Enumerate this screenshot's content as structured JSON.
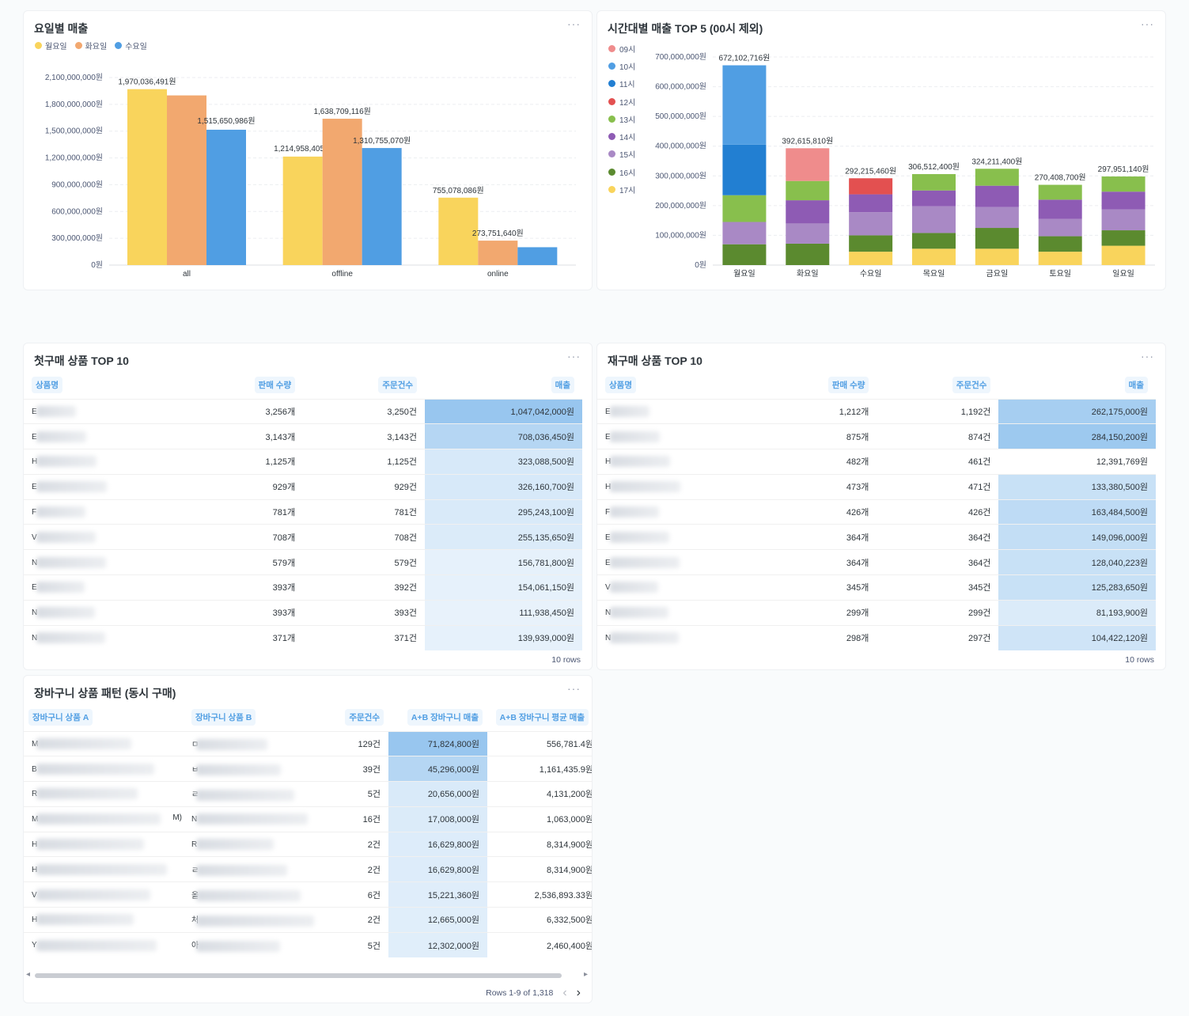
{
  "colors": {
    "mon": "#f9d45c",
    "tue": "#f2a86f",
    "wed": "#509ee3",
    "h09": "#ef8c8c",
    "h10": "#509ee3",
    "h11": "#227fd2",
    "h12": "#e35050",
    "h13": "#88bf4d",
    "h14": "#8e5bb4",
    "h15": "#a989c5",
    "h16": "#5b8a2f",
    "h17": "#f9d45c"
  },
  "card1": {
    "title": "요일별 매출",
    "more": "···",
    "legend": [
      "월요일",
      "화요일",
      "수요일"
    ]
  },
  "card2": {
    "title": "시간대별 매출 TOP 5 (00시 제외)",
    "more": "···",
    "legend": [
      "09시",
      "10시",
      "11시",
      "12시",
      "13시",
      "14시",
      "15시",
      "16시",
      "17시"
    ]
  },
  "chart_data": [
    {
      "type": "bar",
      "title": "요일별 매출",
      "categories": [
        "all",
        "offline",
        "online"
      ],
      "series": [
        {
          "name": "월요일",
          "values": [
            1970036491,
            1214958405,
            755078086
          ]
        },
        {
          "name": "화요일",
          "values": [
            1900000000,
            1638709116,
            273751640
          ]
        },
        {
          "name": "수요일",
          "values": [
            1515650986,
            1310755070,
            200000000
          ]
        }
      ],
      "data_labels": [
        [
          "1,970,036,491원",
          "",
          "1,515,650,986원"
        ],
        [
          "1,214,958,405원",
          "1,638,709,116원",
          "1,310,755,070원"
        ],
        [
          "755,078,086원",
          "273,751,640원",
          ""
        ]
      ],
      "yticks": [
        "0원",
        "300,000,000원",
        "600,000,000원",
        "900,000,000원",
        "1,200,000,000원",
        "1,500,000,000원",
        "1,800,000,000원",
        "2,100,000,000원"
      ],
      "ylim": [
        0,
        2100000000
      ]
    },
    {
      "type": "bar",
      "stacked": true,
      "title": "시간대별 매출 TOP 5 (00시 제외)",
      "categories": [
        "월요일",
        "화요일",
        "수요일",
        "목요일",
        "금요일",
        "토요일",
        "일요일"
      ],
      "totals": [
        "672,102,716원",
        "392,615,810원",
        "292,215,460원",
        "306,512,400원",
        "324,211,400원",
        "270,408,700원",
        "297,951,140원"
      ],
      "stacks": [
        [
          [
            "h16",
            70000000
          ],
          [
            "h15",
            75000000
          ],
          [
            "h13",
            90000000
          ],
          [
            "h11",
            170000000
          ],
          [
            "h10",
            267000000
          ]
        ],
        [
          [
            "h16",
            72000000
          ],
          [
            "h15",
            68000000
          ],
          [
            "h14",
            78000000
          ],
          [
            "h13",
            65000000
          ],
          [
            "h09",
            110000000
          ]
        ],
        [
          [
            "h17",
            45000000
          ],
          [
            "h16",
            55000000
          ],
          [
            "h15",
            78000000
          ],
          [
            "h14",
            60000000
          ],
          [
            "h12",
            54000000
          ]
        ],
        [
          [
            "h17",
            55000000
          ],
          [
            "h16",
            53000000
          ],
          [
            "h15",
            90000000
          ],
          [
            "h14",
            53000000
          ],
          [
            "h13",
            55000000
          ]
        ],
        [
          [
            "h17",
            55000000
          ],
          [
            "h16",
            70000000
          ],
          [
            "h15",
            70000000
          ],
          [
            "h14",
            72000000
          ],
          [
            "h13",
            57000000
          ]
        ],
        [
          [
            "h17",
            45000000
          ],
          [
            "h16",
            52000000
          ],
          [
            "h15",
            58000000
          ],
          [
            "h14",
            65000000
          ],
          [
            "h13",
            50000000
          ]
        ],
        [
          [
            "h17",
            65000000
          ],
          [
            "h16",
            52000000
          ],
          [
            "h15",
            70000000
          ],
          [
            "h14",
            60000000
          ],
          [
            "h13",
            51000000
          ]
        ]
      ],
      "yticks": [
        "0원",
        "100,000,000원",
        "200,000,000원",
        "300,000,000원",
        "400,000,000원",
        "500,000,000원",
        "600,000,000원",
        "700,000,000원"
      ],
      "ylim": [
        0,
        700000000
      ]
    }
  ],
  "first": {
    "title": "첫구매 상품 TOP 10",
    "more": "···",
    "cols": [
      "상품명",
      "판매 수량",
      "주문건수",
      "매출"
    ],
    "footer": "10 rows",
    "rows": [
      [
        "E",
        "3,256개",
        "3,250건",
        "1,047,042,000원"
      ],
      [
        "E",
        "3,143개",
        "3,143건",
        "708,036,450원"
      ],
      [
        "H",
        "1,125개",
        "1,125건",
        "323,088,500원"
      ],
      [
        "E",
        "929개",
        "929건",
        "326,160,700원"
      ],
      [
        "F",
        "781개",
        "781건",
        "295,243,100원"
      ],
      [
        "V",
        "708개",
        "708건",
        "255,135,650원"
      ],
      [
        "N",
        "579개",
        "579건",
        "156,781,800원"
      ],
      [
        "E",
        "393개",
        "392건",
        "154,061,150원"
      ],
      [
        "N",
        "393개",
        "393건",
        "111,938,450원"
      ],
      [
        "N",
        "371개",
        "371건",
        "139,939,000원"
      ]
    ],
    "heat": [
      0.85,
      0.55,
      0.2,
      0.2,
      0.18,
      0.15,
      0.05,
      0.05,
      0.02,
      0.04
    ]
  },
  "repeat": {
    "title": "재구매 상품 TOP 10",
    "more": "···",
    "cols": [
      "상품명",
      "판매 수량",
      "주문건수",
      "매출"
    ],
    "footer": "10 rows",
    "rows": [
      [
        "E",
        "1,212개",
        "1,192건",
        "262,175,000원"
      ],
      [
        "E",
        "875개",
        "874건",
        "284,150,200원"
      ],
      [
        "H",
        "482개",
        "461건",
        "12,391,769원"
      ],
      [
        "H",
        "473개",
        "471건",
        "133,380,500원"
      ],
      [
        "F",
        "426개",
        "426건",
        "163,484,500원"
      ],
      [
        "E",
        "364개",
        "364건",
        "149,096,000원"
      ],
      [
        "E",
        "364개",
        "364건",
        "128,040,223원"
      ],
      [
        "V",
        "345개",
        "345건",
        "125,283,650원"
      ],
      [
        "N",
        "299개",
        "299건",
        "81,193,900원"
      ],
      [
        "N",
        "298개",
        "297건",
        "104,422,120원"
      ]
    ],
    "heat": [
      0.7,
      0.8,
      0,
      0.35,
      0.45,
      0.4,
      0.35,
      0.35,
      0.15,
      0.28
    ]
  },
  "basket": {
    "title": "장바구니 상품 패턴 (동시 구매)",
    "more": "···",
    "cols": [
      "장바구니 상품 A",
      "장바구니 상품 B",
      "주문건수",
      "A+B 장바구니 매출",
      "A+B 장바구니 평균 매출"
    ],
    "rows": [
      [
        "M",
        "ㅁ",
        "129건",
        "71,824,800원",
        "556,781.4원"
      ],
      [
        "B",
        "ㅂ",
        "39건",
        "45,296,000원",
        "1,161,435.9원"
      ],
      [
        "R",
        "ㄹ",
        "5건",
        "20,656,000원",
        "4,131,200원"
      ],
      [
        "M",
        "N",
        "16건",
        "17,008,000원",
        "1,063,000원"
      ],
      [
        "H",
        "R",
        "2건",
        "16,629,800원",
        "8,314,900원"
      ],
      [
        "H",
        "ㄹ",
        "2건",
        "16,629,800원",
        "8,314,900원"
      ],
      [
        "V",
        "올",
        "6건",
        "15,221,360원",
        "2,536,893.33원"
      ],
      [
        "H",
        "처",
        "2건",
        "12,665,000원",
        "6,332,500원"
      ],
      [
        "Y",
        "아",
        "5건",
        "12,302,000원",
        "2,460,400원"
      ]
    ],
    "heat": [
      0.85,
      0.55,
      0.18,
      0.15,
      0.14,
      0.14,
      0.12,
      0.1,
      0.1
    ],
    "row4_suffix": "M)",
    "footer": "Rows 1-9 of 1,318",
    "prev": "‹",
    "next": "›",
    "scroll_left": "◂",
    "scroll_right": "▸"
  }
}
